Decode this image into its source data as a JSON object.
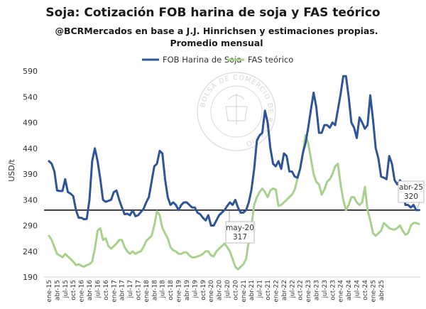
{
  "chart_data": {
    "type": "line",
    "title": "Soja: Cotización FOB harina de soja y FAS teórico",
    "subtitle": "@BCRMercados en base a J.J. Hinrichsen y estimaciones propias. Promedio mensual",
    "ylabel": "USD/t",
    "xlabel": "",
    "ylim": [
      190,
      590
    ],
    "yticks": [
      190,
      240,
      290,
      340,
      390,
      440,
      490,
      540,
      590
    ],
    "grid": false,
    "legend": "top",
    "x_tick_labels": [
      "ene-15",
      "abr-15",
      "jul-15",
      "oct-15",
      "ene-16",
      "abr-16",
      "jul-16",
      "oct-16",
      "ene-17",
      "abr-17",
      "jul-17",
      "oct-17",
      "ene-18",
      "abr-18",
      "jul-18",
      "oct-18",
      "ene-19",
      "abr-19",
      "jul-19",
      "oct-19",
      "ene-20",
      "abr-20",
      "jul-20",
      "oct-20",
      "ene-21",
      "abr-21",
      "jul-21",
      "oct-21",
      "ene-22",
      "abr-22",
      "jul-22",
      "oct-22",
      "ene-23",
      "abr-23",
      "jul-23",
      "oct-23",
      "ene-24",
      "abr-24",
      "jul-24",
      "oct-24",
      "ene-25",
      "abr-25"
    ],
    "reference_line": {
      "value": 320,
      "color": "#000000"
    },
    "series": [
      {
        "name": "FOB Harina de Soja",
        "color": "#2e5597",
        "values": [
          415,
          410,
          395,
          358,
          357,
          357,
          380,
          355,
          352,
          347,
          320,
          305,
          305,
          302,
          303,
          340,
          415,
          440,
          415,
          380,
          340,
          336,
          338,
          340,
          355,
          358,
          340,
          325,
          312,
          313,
          310,
          320,
          308,
          310,
          316,
          322,
          335,
          345,
          375,
          405,
          410,
          435,
          430,
          380,
          345,
          330,
          335,
          330,
          320,
          330,
          335,
          335,
          330,
          325,
          325,
          315,
          312,
          305,
          300,
          310,
          290,
          290,
          300,
          310,
          315,
          320,
          328,
          335,
          330,
          340,
          325,
          315,
          315,
          320,
          335,
          360,
          400,
          455,
          465,
          470,
          513,
          490,
          440,
          410,
          405,
          415,
          400,
          430,
          425,
          395,
          395,
          385,
          383,
          400,
          430,
          450,
          480,
          515,
          548,
          520,
          470,
          470,
          485,
          485,
          480,
          490,
          485,
          515,
          545,
          580,
          580,
          540,
          490,
          480,
          460,
          500,
          490,
          478,
          485,
          543,
          495,
          440,
          420,
          385,
          383,
          380,
          425,
          410,
          378,
          370,
          378,
          367,
          330,
          330,
          325,
          330,
          320,
          320
        ]
      },
      {
        "name": "FAS teórico",
        "color": "#a9d18e",
        "values": [
          270,
          262,
          248,
          235,
          232,
          228,
          235,
          230,
          225,
          220,
          213,
          215,
          212,
          210,
          213,
          215,
          220,
          245,
          280,
          285,
          262,
          265,
          250,
          245,
          250,
          255,
          262,
          262,
          248,
          240,
          235,
          240,
          235,
          238,
          240,
          248,
          260,
          265,
          270,
          290,
          318,
          310,
          285,
          275,
          265,
          248,
          242,
          240,
          235,
          235,
          238,
          238,
          232,
          228,
          228,
          230,
          232,
          235,
          240,
          240,
          232,
          230,
          240,
          245,
          250,
          255,
          248,
          240,
          225,
          210,
          205,
          210,
          215,
          225,
          260,
          290,
          330,
          345,
          355,
          362,
          355,
          345,
          358,
          362,
          360,
          328,
          330,
          335,
          340,
          345,
          350,
          360,
          380,
          400,
          430,
          465,
          450,
          420,
          390,
          375,
          370,
          350,
          360,
          375,
          380,
          390,
          405,
          410,
          370,
          340,
          320,
          330,
          345,
          345,
          335,
          330,
          335,
          365,
          320,
          300,
          275,
          270,
          275,
          280,
          295,
          290,
          285,
          283,
          282,
          285,
          290,
          280,
          272,
          275,
          290,
          295,
          295,
          293
        ]
      }
    ],
    "annotations": [
      {
        "label_lines": [
          "may-20",
          "317"
        ],
        "value": 317
      },
      {
        "label_lines": [
          "abr-25",
          "320"
        ],
        "value": 320
      }
    ],
    "watermark": "BOLSA DE COMERCIO DE ROSARIO"
  }
}
